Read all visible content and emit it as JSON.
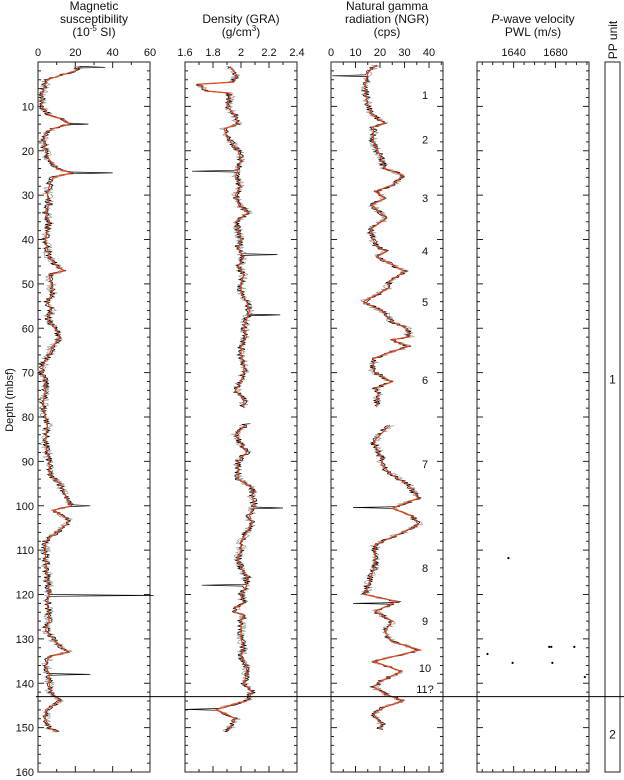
{
  "depth_axis": {
    "label": "Depth (mbsf)",
    "range": [
      0,
      160
    ],
    "ticks": [
      10,
      20,
      30,
      40,
      50,
      60,
      70,
      80,
      90,
      100,
      110,
      120,
      130,
      140,
      150,
      160
    ],
    "minor_step": 2
  },
  "boundary_depth": 143,
  "colors": {
    "raw": "#000000",
    "raw_secondary": "#9a9a9a",
    "smoothed": "#e0461a",
    "frame": "#222222"
  },
  "chart_data": [
    {
      "type": "line",
      "title_lines": [
        "Magnetic",
        "susceptibility"
      ],
      "unit": {
        "pre": "(10",
        "sup": "-5",
        "post": " SI)"
      },
      "xlim": [
        0,
        60
      ],
      "ticks": [
        0,
        20,
        40,
        60
      ],
      "minor_step": 10,
      "connect_gaps": true,
      "smoothed": [
        [
          1,
          22
        ],
        [
          2,
          20
        ],
        [
          3,
          12
        ],
        [
          4,
          5
        ],
        [
          6,
          3
        ],
        [
          8,
          2
        ],
        [
          10,
          2
        ],
        [
          12,
          6
        ],
        [
          13,
          14
        ],
        [
          14,
          17
        ],
        [
          15,
          8
        ],
        [
          16,
          4
        ],
        [
          18,
          3
        ],
        [
          20,
          4
        ],
        [
          22,
          6
        ],
        [
          24,
          10
        ],
        [
          25,
          18
        ],
        [
          26,
          8
        ],
        [
          28,
          6
        ],
        [
          30,
          5
        ],
        [
          32,
          6
        ],
        [
          34,
          4
        ],
        [
          36,
          6
        ],
        [
          38,
          5
        ],
        [
          40,
          4
        ],
        [
          42,
          5
        ],
        [
          44,
          6
        ],
        [
          46,
          10
        ],
        [
          47,
          14
        ],
        [
          48,
          6
        ],
        [
          50,
          7
        ],
        [
          52,
          8
        ],
        [
          54,
          5
        ],
        [
          56,
          7
        ],
        [
          58,
          5
        ],
        [
          60,
          9
        ],
        [
          62,
          12
        ],
        [
          64,
          8
        ],
        [
          66,
          6
        ],
        [
          68,
          3
        ],
        [
          70,
          2
        ],
        [
          72,
          4
        ],
        [
          74,
          4
        ],
        [
          76,
          3
        ],
        [
          78,
          3
        ],
        [
          82,
          5
        ],
        [
          86,
          4
        ],
        [
          90,
          6
        ],
        [
          93,
          6
        ],
        [
          95,
          12
        ],
        [
          97,
          14
        ],
        [
          99,
          16
        ],
        [
          100,
          18
        ],
        [
          101,
          8
        ],
        [
          103,
          16
        ],
        [
          104,
          16
        ],
        [
          106,
          10
        ],
        [
          108,
          4
        ],
        [
          112,
          4
        ],
        [
          116,
          5
        ],
        [
          120,
          6
        ],
        [
          122,
          5
        ],
        [
          126,
          6
        ],
        [
          128,
          4
        ],
        [
          131,
          10
        ],
        [
          133,
          16
        ],
        [
          134,
          6
        ],
        [
          136,
          4
        ],
        [
          138,
          6
        ],
        [
          140,
          6
        ],
        [
          142,
          7
        ],
        [
          144,
          12
        ],
        [
          145,
          8
        ],
        [
          146,
          4
        ],
        [
          148,
          4
        ],
        [
          150,
          6
        ],
        [
          151,
          10
        ]
      ],
      "outliers": [
        [
          1.2,
          36
        ],
        [
          14,
          27
        ],
        [
          25,
          40
        ],
        [
          100,
          28
        ],
        [
          120.3,
          62
        ],
        [
          138,
          28
        ]
      ]
    },
    {
      "type": "line",
      "title_lines": [
        "Density (GRA)"
      ],
      "unit": {
        "pre": "(g/cm",
        "sup": "3",
        "post": ")"
      },
      "xlim": [
        1.6,
        2.4
      ],
      "ticks": [
        1.6,
        1.8,
        2.0,
        2.2,
        2.4
      ],
      "tick_labels": [
        "1.6",
        "1.8",
        "2",
        "2.2",
        "2.4"
      ],
      "minor_step": 0.1,
      "connect_gaps": false,
      "smoothed": [
        [
          1,
          1.92
        ],
        [
          3,
          1.97
        ],
        [
          4.5,
          1.95
        ],
        [
          5,
          1.7
        ],
        [
          6.5,
          1.74
        ],
        [
          7,
          1.92
        ],
        [
          8,
          1.92
        ],
        [
          10,
          1.9
        ],
        [
          12,
          1.96
        ],
        [
          14,
          1.98
        ],
        [
          15,
          1.88
        ],
        [
          17,
          1.9
        ],
        [
          20,
          1.98
        ],
        [
          22,
          2.0
        ],
        [
          24,
          1.98
        ],
        [
          26,
          1.96
        ],
        [
          28,
          2.0
        ],
        [
          30,
          1.96
        ],
        [
          32,
          1.98
        ],
        [
          34,
          2.05
        ],
        [
          36,
          1.96
        ],
        [
          38,
          1.98
        ],
        [
          40,
          2.0
        ],
        [
          42,
          1.98
        ],
        [
          44,
          2.02
        ],
        [
          46,
          1.98
        ],
        [
          48,
          2.02
        ],
        [
          50,
          2.0
        ],
        [
          52,
          2.0
        ],
        [
          54,
          2.04
        ],
        [
          56,
          2.06
        ],
        [
          58,
          2.04
        ],
        [
          60,
          2.02
        ],
        [
          62,
          2.04
        ],
        [
          64,
          2.0
        ],
        [
          66,
          2.0
        ],
        [
          68,
          2.02
        ],
        [
          70,
          2.02
        ],
        [
          72,
          2.0
        ],
        [
          74,
          1.96
        ],
        [
          76,
          2.02
        ],
        [
          78,
          2.02
        ],
        [
          null,
          null
        ],
        [
          81.5,
          2.04
        ],
        [
          84,
          1.96
        ],
        [
          86,
          2.0
        ],
        [
          88,
          2.04
        ],
        [
          90,
          1.98
        ],
        [
          92,
          1.98
        ],
        [
          94,
          1.98
        ],
        [
          96,
          2.08
        ],
        [
          98,
          2.08
        ],
        [
          100,
          2.1
        ],
        [
          102,
          2.06
        ],
        [
          104,
          2.08
        ],
        [
          106,
          2.04
        ],
        [
          108,
          2.0
        ],
        [
          110,
          2.0
        ],
        [
          112,
          1.98
        ],
        [
          114,
          2.0
        ],
        [
          116,
          2.04
        ],
        [
          118,
          2.04
        ],
        [
          120,
          2.0
        ],
        [
          122,
          2.02
        ],
        [
          123,
          1.96
        ],
        [
          124,
          1.96
        ],
        [
          124.5,
          2.02
        ],
        [
          126,
          2.0
        ],
        [
          128,
          2.0
        ],
        [
          130,
          2.0
        ],
        [
          132,
          2.02
        ],
        [
          134,
          2.0
        ],
        [
          136,
          2.04
        ],
        [
          138,
          2.04
        ],
        [
          140,
          2.02
        ],
        [
          142,
          2.08
        ],
        [
          144,
          2.04
        ],
        [
          145,
          1.92
        ],
        [
          146,
          1.82
        ],
        [
          147,
          1.9
        ],
        [
          148,
          1.96
        ],
        [
          149,
          1.94
        ],
        [
          150,
          1.92
        ],
        [
          151,
          1.9
        ]
      ],
      "outliers": [
        [
          24.5,
          1.65
        ],
        [
          43.5,
          2.26
        ],
        [
          57,
          2.28
        ],
        [
          78,
          2.28
        ],
        [
          100.5,
          2.3
        ],
        [
          118,
          1.72
        ],
        [
          145.8,
          1.6
        ]
      ]
    },
    {
      "type": "line",
      "title_lines": [
        "Natural gamma",
        "radiation (NGR)"
      ],
      "unit": {
        "pre": "(cps)",
        "sup": "",
        "post": ""
      },
      "xlim": [
        0,
        45.7
      ],
      "ticks": [
        0,
        10,
        20,
        30,
        40
      ],
      "minor_step": 5,
      "connect_gaps": false,
      "smoothed": [
        [
          0.7,
          18.6
        ],
        [
          2.4,
          15
        ],
        [
          5.2,
          13.9
        ],
        [
          8.9,
          14.6
        ],
        [
          11.9,
          16.6
        ],
        [
          13.8,
          22
        ],
        [
          14.6,
          17.3
        ],
        [
          18,
          17.3
        ],
        [
          21,
          20
        ],
        [
          24,
          22
        ],
        [
          25.5,
          29.5
        ],
        [
          27.7,
          25
        ],
        [
          29.2,
          18
        ],
        [
          30.7,
          22
        ],
        [
          32.2,
          16.6
        ],
        [
          35.2,
          22.7
        ],
        [
          37.5,
          16.6
        ],
        [
          39.4,
          16.6
        ],
        [
          41.6,
          18.6
        ],
        [
          42.7,
          22.7
        ],
        [
          43.9,
          18.6
        ],
        [
          47.2,
          30.2
        ],
        [
          49.5,
          23.4
        ],
        [
          51,
          23.4
        ],
        [
          54,
          13.2
        ],
        [
          56.3,
          21.4
        ],
        [
          58.5,
          24.8
        ],
        [
          60,
          30.9
        ],
        [
          61.9,
          32.2
        ],
        [
          62.6,
          24.8
        ],
        [
          64.1,
          31.6
        ],
        [
          65.3,
          24.8
        ],
        [
          66.8,
          17.3
        ],
        [
          69.8,
          17.3
        ],
        [
          72.1,
          24.8
        ],
        [
          73.5,
          18
        ],
        [
          75,
          19.3
        ],
        [
          77.7,
          18.6
        ],
        [
          null,
          null
        ],
        [
          81.8,
          24
        ],
        [
          85.6,
          17.3
        ],
        [
          89.3,
          20.7
        ],
        [
          90.8,
          20.7
        ],
        [
          93.1,
          25
        ],
        [
          95.3,
          31.6
        ],
        [
          98.3,
          35.6
        ],
        [
          100.6,
          25
        ],
        [
          102.4,
          33.6
        ],
        [
          104.3,
          35.6
        ],
        [
          106.6,
          26.8
        ],
        [
          108.8,
          18
        ],
        [
          113.3,
          18
        ],
        [
          120,
          13.9
        ],
        [
          121.6,
          26.8
        ],
        [
          123.8,
          18
        ],
        [
          126,
          24.8
        ],
        [
          128.4,
          22
        ],
        [
          130.6,
          24.8
        ],
        [
          132.5,
          36.3
        ],
        [
          135.1,
          17.3
        ],
        [
          137.3,
          28.8
        ],
        [
          139.6,
          20
        ],
        [
          140.8,
          17.3
        ],
        [
          142.6,
          22.7
        ],
        [
          143.9,
          29.5
        ],
        [
          145.5,
          21.3
        ],
        [
          147,
          17.3
        ],
        [
          149.2,
          20.7
        ],
        [
          150.4,
          20
        ]
      ],
      "outliers": [
        [
          3.2,
          0.5
        ],
        [
          100.5,
          9
        ],
        [
          122,
          9
        ]
      ],
      "unit_labels": [
        {
          "label": "1",
          "depth": 7.4
        },
        {
          "label": "2",
          "depth": 17.5
        },
        {
          "label": "3",
          "depth": 30.6
        },
        {
          "label": "4",
          "depth": 42.6
        },
        {
          "label": "5",
          "depth": 54.1
        },
        {
          "label": "6",
          "depth": 71.7
        },
        {
          "label": "7",
          "depth": 90.6
        },
        {
          "label": "8",
          "depth": 114
        },
        {
          "label": "9",
          "depth": 126
        },
        {
          "label": "10",
          "depth": 136.6
        },
        {
          "label": "11?",
          "depth": 141.3
        }
      ]
    },
    {
      "type": "scatter",
      "title_lines": [
        "P-wave velocity",
        "PWL (m/s)"
      ],
      "title_italic_prefix": "P",
      "xlim": [
        1605,
        1712
      ],
      "ticks": [
        1640,
        1680
      ],
      "minor_step": 10,
      "points": [
        [
          111.8,
          1635
        ],
        [
          131.8,
          1674
        ],
        [
          131.8,
          1676
        ],
        [
          131.8,
          1698
        ],
        [
          133.4,
          1615
        ],
        [
          135.4,
          1639
        ],
        [
          135.4,
          1677
        ],
        [
          138.6,
          1708
        ]
      ]
    }
  ],
  "pp_units": {
    "label": "PP unit",
    "units": [
      {
        "label": "1",
        "top": 0,
        "bottom": 143
      },
      {
        "label": "2",
        "top": 143,
        "bottom": 160
      }
    ]
  }
}
